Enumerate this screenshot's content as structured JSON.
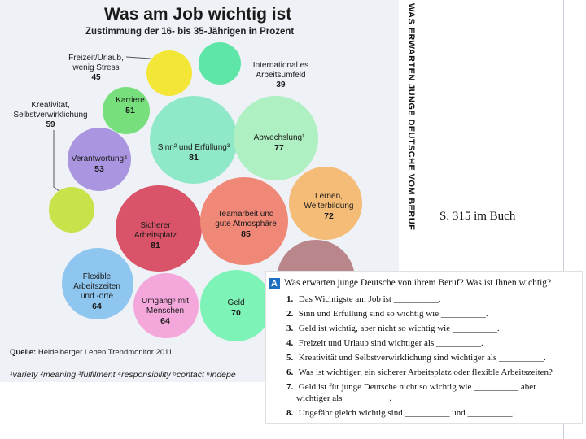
{
  "infographic": {
    "title": "Was am Job wichtig ist",
    "subtitle": "Zustimmung der 16- bis 35-Jährigen in Prozent",
    "vertical_title": "WAS ERWARTEN JUNGE DEUTSCHE VOM BERUF",
    "source_label": "Quelle:",
    "source_text": "Heidelberger Leben Trendmonitor 2011",
    "footnotes": "¹variety ²meaning ³fulfilment ⁴responsibility ⁵contact ⁶indepe",
    "colors": {
      "yellow": "#f4e636",
      "lime": "#c8e24a",
      "mint": "#5ee6a8",
      "green_bright": "#77e07d",
      "aqua": "#8fe9c8",
      "violet": "#a995e0",
      "seafoam": "#aef0c2",
      "red": "#d95468",
      "orange": "#f5bc78",
      "sky": "#8fc6ef",
      "pink": "#f3a7db",
      "mint_light": "#7ef3b8"
    },
    "bubbles": [
      {
        "key": "freizeit",
        "label": "Freizeit/Urlaub, wenig Stress",
        "value": 45,
        "color": "#f4e636"
      },
      {
        "key": "international",
        "label": "Internationales Arbeitsumfeld",
        "value": 39,
        "color": "#5ee6a8"
      },
      {
        "key": "karriere",
        "label": "Karriere",
        "value": 51,
        "color": "#77e07d"
      },
      {
        "key": "kreativitaet",
        "label": "Kreativität, Selbstverwirklichung",
        "value": 59,
        "color": "#c8e24a"
      },
      {
        "key": "verantwortung",
        "label": "Verantwortung⁴",
        "value": 53,
        "color": "#a995e0"
      },
      {
        "key": "sinn",
        "label": "Sinn² und Erfüllung³",
        "value": 81,
        "color": "#8fe9c8"
      },
      {
        "key": "abwechslung",
        "label": "Abwechslung¹",
        "value": 77,
        "color": "#aef0c2"
      },
      {
        "key": "arbeitsplatz",
        "label": "Sicherer Arbeitsplatz",
        "value": 81,
        "color": "#d95468"
      },
      {
        "key": "teamarbeit",
        "label": "Teamarbeit und gute Atmosphäre",
        "value": 85,
        "color": "#f08878"
      },
      {
        "key": "lernen",
        "label": "Lernen, Weiterbildung",
        "value": 72,
        "color": "#f5bc78"
      },
      {
        "key": "flexibel",
        "label": "Flexible Arbeitszeiten und -orte",
        "value": 64,
        "color": "#8fc6ef"
      },
      {
        "key": "umgang",
        "label": "Umgang⁵ mit Menschen",
        "value": 64,
        "color": "#f3a7db"
      },
      {
        "key": "geld",
        "label": "Geld",
        "value": 70,
        "color": "#7ef3b8"
      }
    ]
  },
  "page_ref": "S. 315 im Buch",
  "exercise": {
    "badge": "A",
    "question": "Was erwarten junge Deutsche von ihrem Beruf? Was ist Ihnen wichtig?",
    "items": [
      {
        "n": "1.",
        "text": "Das Wichtigste am Job ist __________."
      },
      {
        "n": "2.",
        "text": "Sinn und Erfüllung sind so wichtig wie __________."
      },
      {
        "n": "3.",
        "text": "Geld ist wichtig, aber nicht so wichtig wie __________."
      },
      {
        "n": "4.",
        "text": "Freizeit und Urlaub sind wichtiger als __________."
      },
      {
        "n": "5.",
        "text": "Kreativität und Selbstverwirklichung sind wichtiger als __________."
      },
      {
        "n": "6.",
        "text": "Was ist wichtiger, ein sicherer Arbeitsplatz oder flexible Arbeitszeiten?"
      },
      {
        "n": "7.",
        "text": "Geld ist für junge Deutsche nicht so wichtig wie __________ aber"
      },
      {
        "n": "8.",
        "text": "Ungefähr gleich wichtig sind __________ und __________."
      }
    ],
    "item7_cont": "wichtiger als __________."
  }
}
